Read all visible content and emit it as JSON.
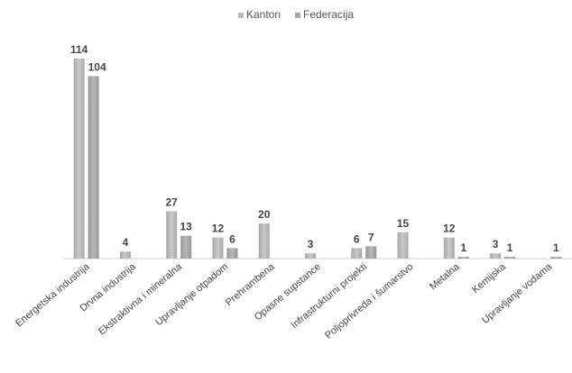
{
  "chart_data": {
    "type": "bar",
    "title": "",
    "xlabel": "",
    "ylabel": "",
    "ylim": [
      0,
      114
    ],
    "grid": false,
    "legend_position": "top",
    "categories": [
      "Energetska industrija",
      "Drvna industrija",
      "Ekstraktivna i mineralna",
      "Upravljanje otpadom",
      "Prehrambena",
      "Opasne supstance",
      "Infrastrukturni projekti",
      "Poljoprivreda i šumarstvo",
      "Metalna",
      "Kemijska",
      "Upravljanje vodama"
    ],
    "series": [
      {
        "name": "Kanton",
        "color": "#bdbdbd",
        "values": [
          114,
          4,
          27,
          12,
          20,
          3,
          6,
          15,
          12,
          3,
          null
        ]
      },
      {
        "name": "Federacija",
        "color": "#a8a8a8",
        "values": [
          104,
          null,
          13,
          6,
          null,
          null,
          7,
          null,
          1,
          1,
          1
        ]
      }
    ]
  }
}
